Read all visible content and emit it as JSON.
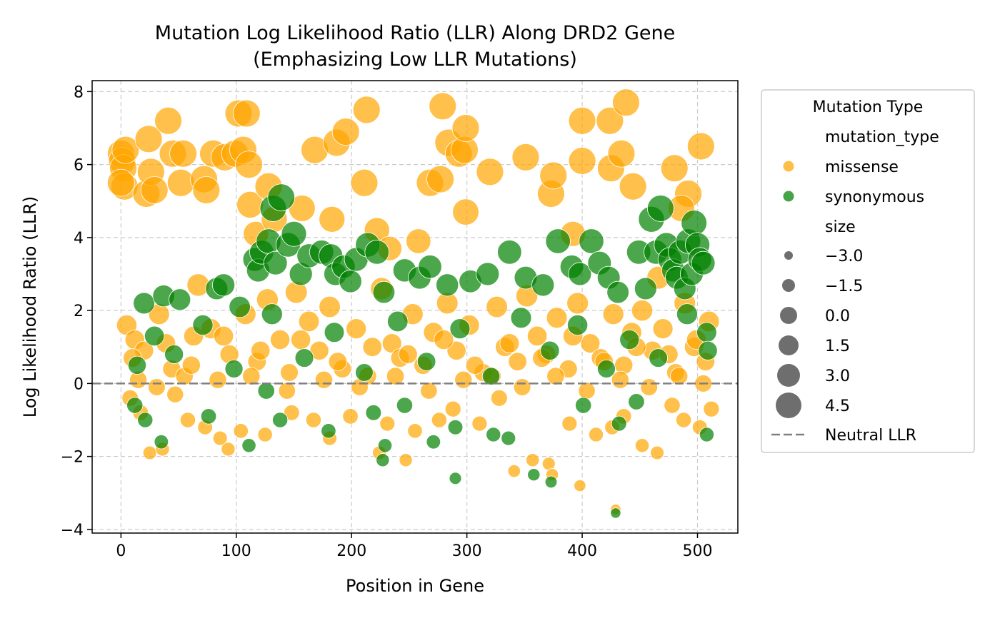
{
  "chart_data": {
    "type": "scatter",
    "title": "Mutation Log Likelihood Ratio (LLR) Along DRD2 Gene",
    "subtitle": "(Emphasizing Low LLR Mutations)",
    "xlabel": "Position in Gene",
    "ylabel": "Log Likelihood Ratio (LLR)",
    "xlim": [
      -25,
      535
    ],
    "ylim": [
      -4.1,
      8.3
    ],
    "x_ticks": [
      0,
      100,
      200,
      300,
      400,
      500
    ],
    "y_ticks": [
      -4,
      -2,
      0,
      2,
      4,
      6,
      8
    ],
    "y_tick_labels": [
      "−4",
      "−2",
      "0",
      "2",
      "4",
      "6",
      "8"
    ],
    "grid": true,
    "reference_line": {
      "y": 0,
      "label": "Neutral LLR",
      "color": "#808080",
      "style": "dashed"
    },
    "colors": {
      "missense": "#FFA500",
      "synonymous": "#008000"
    },
    "legend": {
      "title": "Mutation Type",
      "placement": "outside-right",
      "hue_header": "mutation_type",
      "size_header": "size",
      "entries": [
        {
          "label": "missense",
          "color": "#FFA500"
        },
        {
          "label": "synonymous",
          "color": "#008000"
        }
      ],
      "sizes": [
        {
          "label": "−3.0",
          "value": -3.0
        },
        {
          "label": "−1.5",
          "value": -1.5
        },
        {
          "label": "0.0",
          "value": 0.0
        },
        {
          "label": "1.5",
          "value": 1.5
        },
        {
          "label": "3.0",
          "value": 3.0
        },
        {
          "label": "4.5",
          "value": 4.5
        }
      ],
      "line_label": "Neutral LLR"
    },
    "series": [
      {
        "name": "missense",
        "points": [
          [
            0,
            6.3
          ],
          [
            1,
            6.1
          ],
          [
            2,
            5.9
          ],
          [
            3,
            5.4
          ],
          [
            0,
            5.5
          ],
          [
            4,
            6.4
          ],
          [
            22,
            5.2
          ],
          [
            24,
            6.7
          ],
          [
            26,
            5.8
          ],
          [
            29,
            5.3
          ],
          [
            41,
            7.2
          ],
          [
            45,
            6.3
          ],
          [
            54,
            6.3
          ],
          [
            52,
            5.5
          ],
          [
            72,
            5.6
          ],
          [
            74,
            5.3
          ],
          [
            80,
            6.3
          ],
          [
            90,
            6.2
          ],
          [
            99,
            6.3
          ],
          [
            102,
            7.4
          ],
          [
            106,
            6.4
          ],
          [
            109,
            7.4
          ],
          [
            111,
            6.0
          ],
          [
            112,
            4.9
          ],
          [
            117,
            4.1
          ],
          [
            128,
            5.4
          ],
          [
            133,
            4.5
          ],
          [
            157,
            4.8
          ],
          [
            168,
            6.4
          ],
          [
            183,
            4.5
          ],
          [
            187,
            6.6
          ],
          [
            195,
            6.9
          ],
          [
            211,
            5.5
          ],
          [
            213,
            7.5
          ],
          [
            222,
            4.2
          ],
          [
            233,
            3.7
          ],
          [
            258,
            3.9
          ],
          [
            268,
            5.5
          ],
          [
            277,
            5.6
          ],
          [
            279,
            7.6
          ],
          [
            284,
            6.6
          ],
          [
            293,
            6.3
          ],
          [
            298,
            6.4
          ],
          [
            299,
            4.7
          ],
          [
            299,
            7.0
          ],
          [
            320,
            5.8
          ],
          [
            351,
            6.2
          ],
          [
            373,
            5.2
          ],
          [
            375,
            5.7
          ],
          [
            392,
            4.1
          ],
          [
            400,
            6.1
          ],
          [
            400,
            7.2
          ],
          [
            424,
            7.2
          ],
          [
            425,
            5.9
          ],
          [
            434,
            6.3
          ],
          [
            438,
            7.7
          ],
          [
            444,
            5.4
          ],
          [
            466,
            2.9
          ],
          [
            480,
            5.9
          ],
          [
            492,
            5.2
          ],
          [
            503,
            6.5
          ],
          [
            486,
            4.8
          ],
          [
            5,
            1.6
          ],
          [
            12,
            1.2
          ],
          [
            20,
            0.9
          ],
          [
            33,
            1.9
          ],
          [
            44,
            0.4
          ],
          [
            63,
            1.3
          ],
          [
            67,
            2.7
          ],
          [
            78,
            1.5
          ],
          [
            94,
            0.8
          ],
          [
            108,
            1.9
          ],
          [
            118,
            0.6
          ],
          [
            127,
            2.3
          ],
          [
            138,
            1.2
          ],
          [
            146,
            0.3
          ],
          [
            152,
            2.5
          ],
          [
            163,
            1.7
          ],
          [
            172,
            0.9
          ],
          [
            181,
            2.1
          ],
          [
            192,
            0.4
          ],
          [
            204,
            1.5
          ],
          [
            214,
            0.2
          ],
          [
            226,
            2.6
          ],
          [
            235,
            1.1
          ],
          [
            242,
            0.7
          ],
          [
            253,
            1.9
          ],
          [
            262,
            0.5
          ],
          [
            271,
            1.4
          ],
          [
            283,
            2.2
          ],
          [
            291,
            0.9
          ],
          [
            302,
            1.6
          ],
          [
            314,
            0.3
          ],
          [
            326,
            2.1
          ],
          [
            333,
            1.0
          ],
          [
            344,
            0.6
          ],
          [
            352,
            2.4
          ],
          [
            361,
            1.3
          ],
          [
            369,
            0.8
          ],
          [
            378,
            1.8
          ],
          [
            388,
            0.4
          ],
          [
            396,
            2.2
          ],
          [
            407,
            1.1
          ],
          [
            416,
            0.7
          ],
          [
            427,
            1.9
          ],
          [
            436,
            0.5
          ],
          [
            443,
            1.4
          ],
          [
            452,
            2.0
          ],
          [
            461,
            0.9
          ],
          [
            470,
            1.5
          ],
          [
            481,
            0.3
          ],
          [
            489,
            2.2
          ],
          [
            497,
            1.0
          ],
          [
            507,
            0.6
          ],
          [
            510,
            1.7
          ],
          [
            8,
            -0.4
          ],
          [
            17,
            -0.8
          ],
          [
            25,
            -1.9
          ],
          [
            36,
            -1.8
          ],
          [
            47,
            -0.3
          ],
          [
            58,
            -1.0
          ],
          [
            73,
            -1.2
          ],
          [
            86,
            -1.5
          ],
          [
            93,
            -1.8
          ],
          [
            104,
            -1.3
          ],
          [
            125,
            -1.4
          ],
          [
            148,
            -0.8
          ],
          [
            167,
            -1.0
          ],
          [
            181,
            -1.5
          ],
          [
            199,
            -0.9
          ],
          [
            224,
            -1.9
          ],
          [
            231,
            -1.1
          ],
          [
            247,
            -2.1
          ],
          [
            255,
            -1.3
          ],
          [
            276,
            -1.0
          ],
          [
            288,
            -0.7
          ],
          [
            311,
            -1.1
          ],
          [
            328,
            -0.4
          ],
          [
            341,
            -2.4
          ],
          [
            357,
            -2.1
          ],
          [
            371,
            -2.2
          ],
          [
            374,
            -2.5
          ],
          [
            389,
            -1.1
          ],
          [
            398,
            -2.8
          ],
          [
            412,
            -1.4
          ],
          [
            426,
            -1.2
          ],
          [
            429,
            -3.45
          ],
          [
            436,
            -0.9
          ],
          [
            452,
            -1.7
          ],
          [
            465,
            -1.9
          ],
          [
            478,
            -0.6
          ],
          [
            488,
            -1.0
          ],
          [
            502,
            -1.2
          ],
          [
            512,
            -0.7
          ],
          [
            15,
            0.1
          ],
          [
            31,
            -0.1
          ],
          [
            55,
            0.2
          ],
          [
            84,
            0.1
          ],
          [
            113,
            0.2
          ],
          [
            144,
            -0.2
          ],
          [
            176,
            0.1
          ],
          [
            207,
            -0.1
          ],
          [
            238,
            0.2
          ],
          [
            267,
            -0.2
          ],
          [
            297,
            0.1
          ],
          [
            322,
            0.2
          ],
          [
            348,
            -0.1
          ],
          [
            377,
            0.2
          ],
          [
            404,
            -0.2
          ],
          [
            433,
            0.1
          ],
          [
            458,
            -0.1
          ],
          [
            484,
            0.2
          ],
          [
            505,
            0.0
          ],
          [
            10,
            0.7
          ],
          [
            39,
            1.1
          ],
          [
            61,
            0.5
          ],
          [
            89,
            1.3
          ],
          [
            121,
            0.9
          ],
          [
            156,
            1.2
          ],
          [
            188,
            0.6
          ],
          [
            218,
            1.0
          ],
          [
            249,
            0.8
          ],
          [
            280,
            1.2
          ],
          [
            307,
            0.5
          ],
          [
            337,
            1.1
          ],
          [
            365,
            0.7
          ],
          [
            392,
            1.3
          ],
          [
            419,
            0.6
          ],
          [
            447,
            1.0
          ],
          [
            475,
            0.8
          ],
          [
            499,
            1.2
          ]
        ]
      },
      {
        "name": "synonymous",
        "points": [
          [
            20,
            2.2
          ],
          [
            37,
            2.4
          ],
          [
            51,
            2.3
          ],
          [
            83,
            2.6
          ],
          [
            89,
            2.7
          ],
          [
            103,
            2.1
          ],
          [
            116,
            3.4
          ],
          [
            119,
            3.1
          ],
          [
            122,
            3.6
          ],
          [
            128,
            3.9
          ],
          [
            132,
            4.8
          ],
          [
            134,
            3.3
          ],
          [
            139,
            5.1
          ],
          [
            145,
            3.8
          ],
          [
            150,
            4.1
          ],
          [
            156,
            3.0
          ],
          [
            163,
            3.5
          ],
          [
            174,
            3.6
          ],
          [
            182,
            3.5
          ],
          [
            186,
            3.0
          ],
          [
            193,
            3.2
          ],
          [
            199,
            2.8
          ],
          [
            204,
            3.4
          ],
          [
            214,
            3.8
          ],
          [
            222,
            3.6
          ],
          [
            228,
            2.5
          ],
          [
            246,
            3.1
          ],
          [
            259,
            2.9
          ],
          [
            268,
            3.2
          ],
          [
            283,
            2.7
          ],
          [
            303,
            2.8
          ],
          [
            318,
            3.0
          ],
          [
            337,
            3.6
          ],
          [
            351,
            2.9
          ],
          [
            366,
            2.7
          ],
          [
            379,
            3.9
          ],
          [
            391,
            3.2
          ],
          [
            398,
            3.0
          ],
          [
            408,
            3.9
          ],
          [
            415,
            3.3
          ],
          [
            423,
            2.9
          ],
          [
            431,
            2.5
          ],
          [
            449,
            3.6
          ],
          [
            455,
            2.6
          ],
          [
            460,
            4.5
          ],
          [
            464,
            3.6
          ],
          [
            468,
            4.8
          ],
          [
            473,
            3.8
          ],
          [
            476,
            3.4
          ],
          [
            479,
            3.1
          ],
          [
            482,
            2.9
          ],
          [
            485,
            3.6
          ],
          [
            489,
            2.6
          ],
          [
            492,
            3.9
          ],
          [
            495,
            3.0
          ],
          [
            497,
            4.4
          ],
          [
            500,
            3.8
          ],
          [
            502,
            3.4
          ],
          [
            505,
            3.3
          ],
          [
            508,
            1.4
          ],
          [
            12,
            -0.6
          ],
          [
            21,
            -1.0
          ],
          [
            35,
            -1.6
          ],
          [
            76,
            -0.9
          ],
          [
            111,
            -1.7
          ],
          [
            126,
            -0.2
          ],
          [
            138,
            -1.0
          ],
          [
            180,
            -1.3
          ],
          [
            219,
            -0.8
          ],
          [
            227,
            -2.1
          ],
          [
            229,
            -1.7
          ],
          [
            246,
            -0.6
          ],
          [
            271,
            -1.6
          ],
          [
            290,
            -2.6
          ],
          [
            290,
            -1.2
          ],
          [
            323,
            -1.4
          ],
          [
            336,
            -1.5
          ],
          [
            358,
            -2.5
          ],
          [
            373,
            -2.7
          ],
          [
            401,
            -0.6
          ],
          [
            429,
            -3.55
          ],
          [
            432,
            -1.1
          ],
          [
            447,
            -0.5
          ],
          [
            508,
            -1.4
          ],
          [
            14,
            0.5
          ],
          [
            29,
            1.3
          ],
          [
            46,
            0.8
          ],
          [
            71,
            1.6
          ],
          [
            98,
            0.4
          ],
          [
            131,
            1.9
          ],
          [
            159,
            0.7
          ],
          [
            185,
            1.4
          ],
          [
            211,
            0.3
          ],
          [
            240,
            1.7
          ],
          [
            265,
            0.6
          ],
          [
            294,
            1.5
          ],
          [
            321,
            0.2
          ],
          [
            347,
            1.8
          ],
          [
            372,
            0.9
          ],
          [
            396,
            1.6
          ],
          [
            421,
            0.4
          ],
          [
            441,
            1.2
          ],
          [
            466,
            0.7
          ],
          [
            491,
            1.9
          ],
          [
            509,
            0.9
          ]
        ]
      }
    ]
  }
}
